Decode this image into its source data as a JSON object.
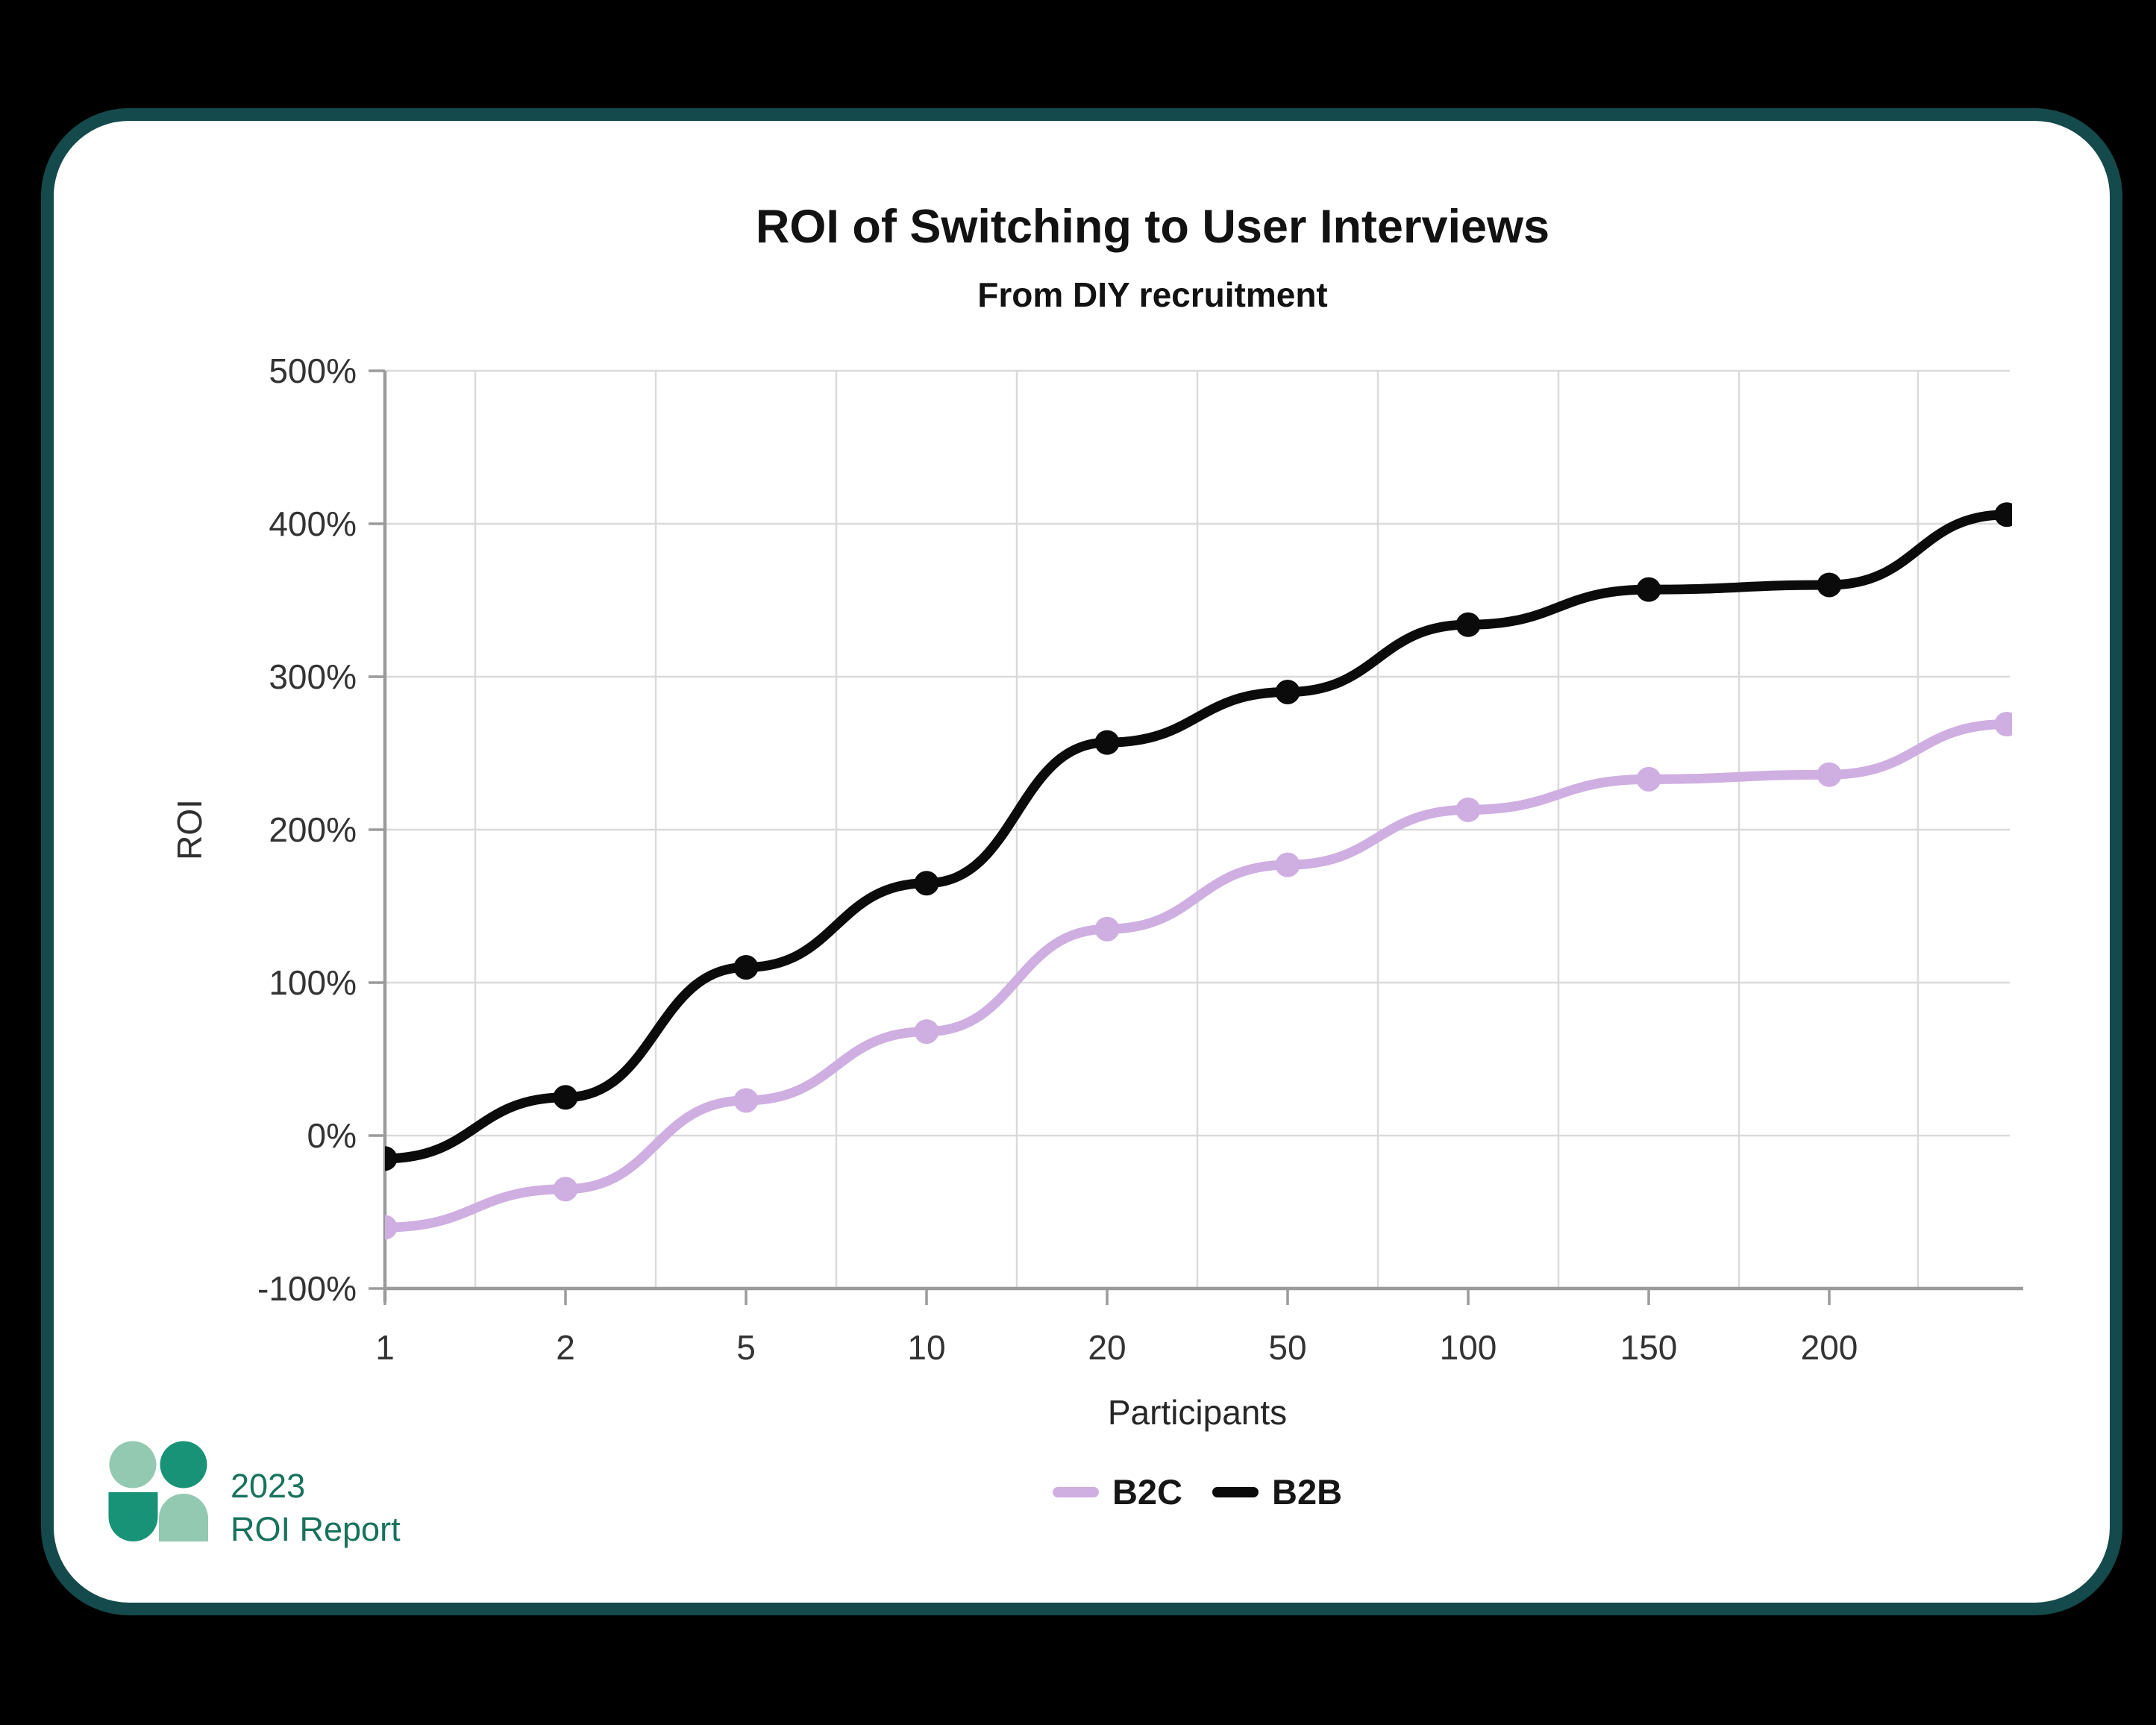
{
  "page": {
    "background": "#000000"
  },
  "card": {
    "background": "#ffffff",
    "border_color": "#144a4c"
  },
  "header": {
    "title": "ROI of Switching to User Interviews",
    "subtitle": "From DIY recruitment"
  },
  "footer": {
    "logo_icon": "people-logo-icon",
    "logo_year": "2023",
    "logo_title": "ROI Report",
    "logo_colors": {
      "dark_green": "#189377",
      "light_green": "#93c8b1",
      "text": "#17725c"
    }
  },
  "chart_data": {
    "type": "line",
    "title": "ROI of Switching to User Interviews",
    "subtitle": "From DIY recruitment",
    "xlabel": "Participants",
    "ylabel": "ROI",
    "categories": [
      "1",
      "2",
      "5",
      "10",
      "20",
      "50",
      "100",
      "150",
      "200",
      ""
    ],
    "series": [
      {
        "name": "B2C",
        "color": "#cfafe1",
        "values": [
          -60,
          -35,
          23,
          68,
          135,
          177,
          213,
          233,
          236,
          269
        ]
      },
      {
        "name": "B2B",
        "color": "#0b0b0b",
        "values": [
          -15,
          25,
          110,
          165,
          257,
          290,
          334,
          357,
          360,
          406
        ]
      }
    ],
    "y_ticks": [
      "500%",
      "400%",
      "300%",
      "200%",
      "100%",
      "0%",
      "-100%"
    ],
    "y_tick_values": [
      500,
      400,
      300,
      200,
      100,
      0,
      -100
    ],
    "ylim": [
      -100,
      500
    ],
    "grid": "on",
    "grid_color": "#dadada",
    "axis_color": "#9b9b9b",
    "legend_position": "bottom",
    "curve": "smooth-s",
    "markers": true
  }
}
